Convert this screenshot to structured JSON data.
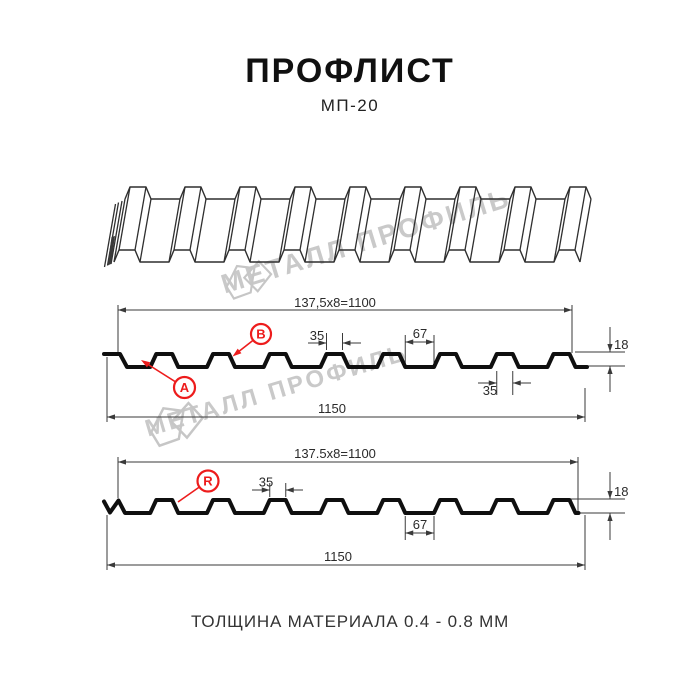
{
  "header": {
    "title": "ПРОФЛИСТ",
    "subtitle": "МП-20"
  },
  "watermark": {
    "text": "МЕТАЛЛ ПРОФИЛЬ"
  },
  "section_top": {
    "dim_pitch": "137,5x8=1100",
    "dim_crest_width": "35",
    "dim_flat_width": "67",
    "dim_height": "18",
    "dim_base_width": "35",
    "dim_total": "1150",
    "label_a": "A",
    "label_b": "B"
  },
  "section_bottom": {
    "dim_pitch": "137.5x8=1100",
    "dim_crest_width": "35",
    "dim_flat_width": "67",
    "dim_height": "18",
    "dim_total": "1150",
    "label_r": "R"
  },
  "footer": {
    "text": "ТОЛЩИНА МАТЕРИАЛА 0.4 - 0.8 ММ"
  },
  "colors": {
    "accent_red": "#ed1c1c",
    "line": "#3a3a3a",
    "profile_line": "#0f0f0f",
    "watermark_gray": "#c9c9c9"
  }
}
